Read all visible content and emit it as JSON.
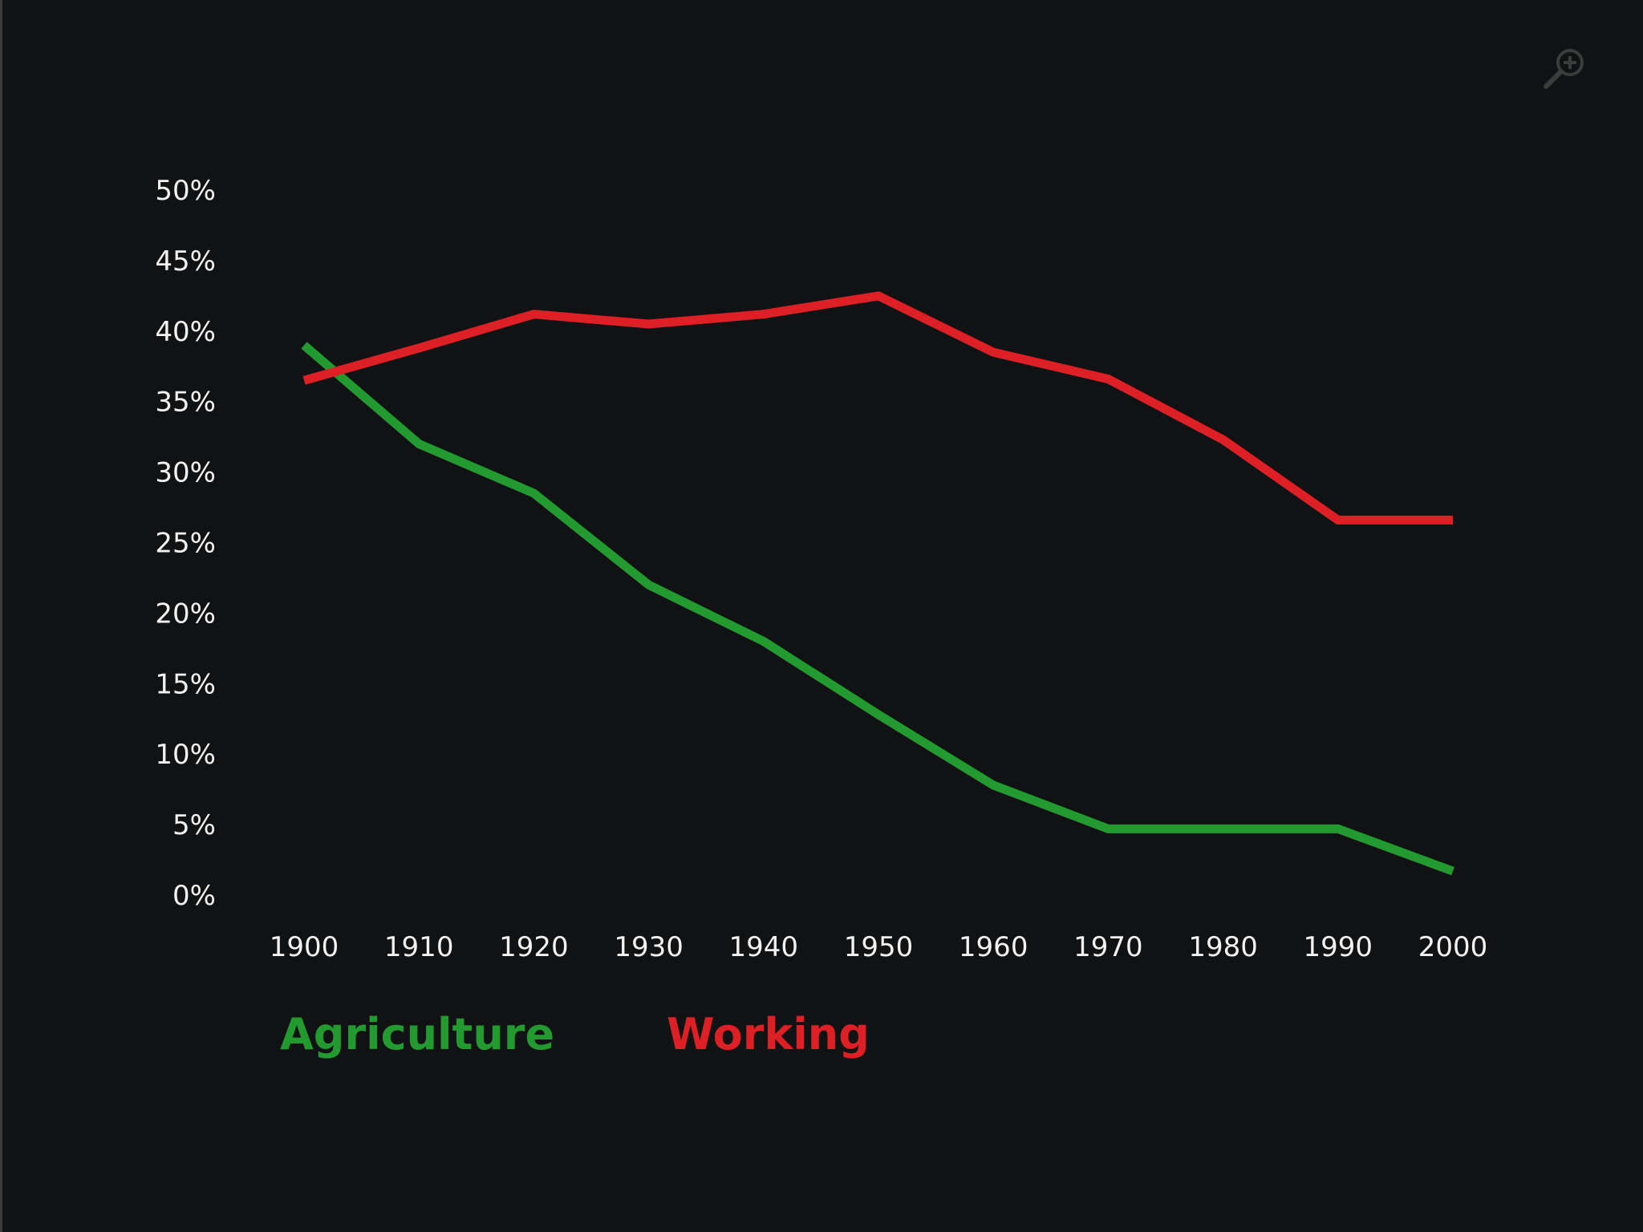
{
  "colors": {
    "background": "#111213",
    "agriculture": "#229a2f",
    "working": "#dd1f26",
    "text": "#f2f2f2"
  },
  "icons": {
    "zoom": "zoom-in-icon"
  },
  "chart_data": {
    "type": "line",
    "title": "",
    "xlabel": "",
    "ylabel": "",
    "x": [
      1900,
      1910,
      1920,
      1930,
      1940,
      1950,
      1960,
      1970,
      1980,
      1990,
      2000
    ],
    "ylim": [
      0,
      50
    ],
    "y_ticks": [
      0,
      5,
      10,
      15,
      20,
      25,
      30,
      35,
      40,
      45,
      50
    ],
    "y_tick_labels": [
      "0%",
      "5%",
      "10%",
      "15%",
      "20%",
      "25%",
      "30%",
      "35%",
      "40%",
      "45%",
      "50%"
    ],
    "x_tick_labels": [
      "1900",
      "1910",
      "1920",
      "1930",
      "1940",
      "1950",
      "1960",
      "1970",
      "1980",
      "1990",
      "2000"
    ],
    "grid": false,
    "legend_position": "bottom-left",
    "series": [
      {
        "name": "Agriculture",
        "color": "#229a2f",
        "values": [
          39,
          32,
          28.5,
          22,
          18,
          12.8,
          7.8,
          4.7,
          4.7,
          4.7,
          1.7
        ]
      },
      {
        "name": "Working",
        "color": "#dd1f26",
        "values": [
          36.5,
          38.8,
          41.2,
          40.5,
          41.2,
          42.5,
          38.5,
          36.6,
          32.3,
          26.6,
          26.6
        ]
      }
    ]
  }
}
